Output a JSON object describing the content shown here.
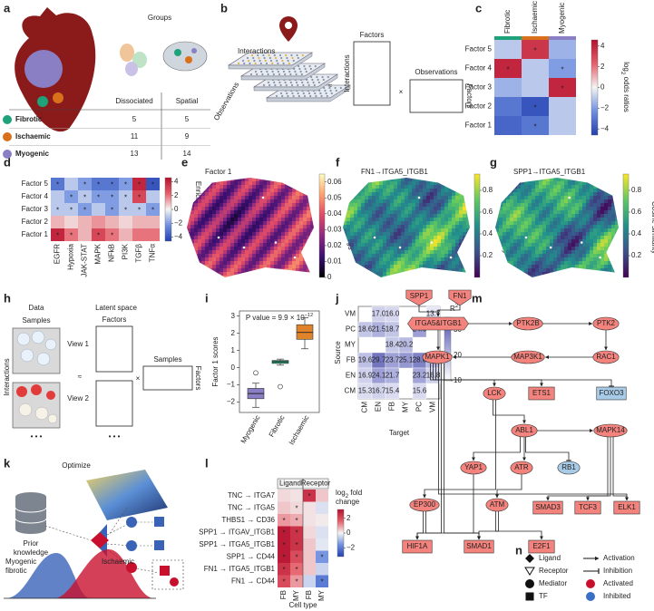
{
  "groups": {
    "label": "a",
    "title": "Groups",
    "headers": [
      "Dissociated",
      "Spatial"
    ],
    "rows": [
      {
        "name": "Fibrotic",
        "color": "#1ea27a",
        "values": [
          5,
          5
        ]
      },
      {
        "name": "Ischaemic",
        "color": "#d8701c",
        "values": [
          11,
          9
        ]
      },
      {
        "name": "Myogenic",
        "color": "#8a7fc4",
        "values": [
          13,
          14
        ]
      }
    ]
  },
  "factorization": {
    "label": "b",
    "plates_top": "Interactions",
    "plates_side": "Observations",
    "approx": "≈",
    "times": "×",
    "factor_matrix": {
      "top": "Factors",
      "side": "Interactions"
    },
    "obs_matrix": {
      "top": "Observations",
      "side": "Factors"
    }
  },
  "odds": {
    "label": "c",
    "columns": [
      "Fibrotic",
      "Ischaemic",
      "Myogenic"
    ],
    "column_colors": [
      "#1ea27a",
      "#d8701c",
      "#8a7fc4"
    ],
    "rows": [
      "Factor 5",
      "Factor 4",
      "Factor 3",
      "Factor 2",
      "Factor 1"
    ],
    "values": [
      [
        -1,
        3.5,
        -1.5
      ],
      [
        4,
        -1,
        -2
      ],
      [
        -1.5,
        -1,
        4
      ],
      [
        -3,
        -4,
        -1
      ],
      [
        -3.5,
        -3,
        -1
      ]
    ],
    "star": "*",
    "stars": [
      [
        0,
        1
      ],
      [
        1,
        0
      ],
      [
        1,
        2
      ],
      [
        2,
        2
      ],
      [
        3,
        1
      ],
      [
        4,
        1
      ]
    ],
    "lim": [
      -4.6,
      4.6
    ],
    "ticks": [
      {
        "value": -4,
        "label": "−4"
      },
      {
        "value": -2,
        "label": "−2"
      },
      0,
      2,
      4
    ],
    "cbar_title": {
      "base": "log",
      "sub": "2",
      "rest": " odds ratios"
    }
  },
  "enrichment": {
    "label": "d",
    "columns": [
      "EGFR",
      "Hypoxia",
      "JAK-STAT",
      "MAPK",
      "NFkB",
      "PI3K",
      "TGFβ",
      "TNFα"
    ],
    "rows": [
      "Factor 5",
      "Factor 4",
      "Factor 3",
      "Factor 2",
      "Factor 1"
    ],
    "values": [
      [
        -3,
        -1,
        -2,
        -3,
        -3,
        -2,
        4,
        -4
      ],
      [
        -1,
        -2,
        -1,
        -2,
        -2,
        -1,
        3,
        -1
      ],
      [
        -1,
        -1,
        -2,
        -1,
        -2,
        -1,
        -1,
        -2
      ],
      [
        1,
        0.5,
        1,
        1.5,
        1,
        0.5,
        1,
        1
      ],
      [
        4,
        2,
        1,
        3,
        2,
        1,
        2,
        2
      ]
    ],
    "star": "*",
    "stars": [
      [
        0,
        0
      ],
      [
        0,
        2
      ],
      [
        0,
        3
      ],
      [
        0,
        4
      ],
      [
        0,
        5
      ],
      [
        0,
        6
      ],
      [
        0,
        7
      ],
      [
        1,
        1
      ],
      [
        1,
        2
      ],
      [
        1,
        3
      ],
      [
        1,
        4
      ],
      [
        1,
        5
      ],
      [
        1,
        6
      ],
      [
        2,
        0
      ],
      [
        2,
        1
      ],
      [
        2,
        2
      ],
      [
        2,
        4
      ],
      [
        2,
        5
      ],
      [
        2,
        6
      ],
      [
        2,
        7
      ],
      [
        4,
        0
      ],
      [
        4,
        1
      ],
      [
        4,
        3
      ],
      [
        4,
        4
      ]
    ],
    "lim": [
      -4.6,
      4.6
    ],
    "ticks": [
      {
        "value": -4,
        "label": "−4"
      },
      {
        "value": -2,
        "label": "−2"
      },
      0,
      2,
      4
    ],
    "cbar_title": "Enrichment score"
  },
  "map_factor": {
    "label": "e",
    "title": "Factor 1",
    "lim": [
      0,
      0.065
    ],
    "ticks": [
      0,
      0.01,
      0.02,
      0.03,
      0.04,
      0.05,
      0.06
    ],
    "cbar_title": "NMF loadings"
  },
  "map_fn1": {
    "label": "f",
    "title": "FN1→ITGA5_ITGB1",
    "lim": [
      0,
      0.95
    ],
    "ticks": [
      0.2,
      0.4,
      0.6,
      0.8
    ],
    "cbar_title": "Cosine similarity"
  },
  "map_spp1": {
    "label": "g",
    "title": "SPP1→ITGA5_ITGB1",
    "lim": [
      0,
      0.95
    ],
    "ticks": [
      0.2,
      0.4,
      0.6,
      0.8
    ],
    "cbar_title": "Cosine similarity"
  },
  "multiview": {
    "label": "h",
    "data": "Data",
    "latent": "Latent space",
    "samples": "Samples",
    "factors": "Factors",
    "interactions": "Interactions",
    "view1": "View 1",
    "view2": "View 2",
    "approx": "≈",
    "times": "×",
    "dots": "• • •",
    "out_top": "Samples",
    "out_side": "Factors"
  },
  "scores": {
    "label": "i",
    "pvalue": {
      "text": "P value = 9.9 × 10",
      "exponent": "−12"
    },
    "ylabel": "Factor 1 scores",
    "categories": [
      "Myogenic",
      "Fibrotic",
      "Ischaemic"
    ],
    "colors": [
      "#8a7fc4",
      "#1ea27a",
      "#e0832a"
    ],
    "boxes": [
      [
        -2.3,
        -1.8,
        -1.5,
        -1.2,
        -0.9
      ],
      [
        0.15,
        0.25,
        0.35,
        0.42,
        0.5
      ],
      [
        1.1,
        1.65,
        2.05,
        2.5,
        2.9
      ]
    ],
    "outliers": [
      [
        -0.3
      ],
      [
        -1.1
      ],
      []
    ],
    "ylim": [
      -2.6,
      3.3
    ],
    "yticks": [
      {
        "value": -2,
        "label": "−2"
      },
      {
        "value": -1,
        "label": "−1"
      },
      0,
      1,
      2,
      3
    ]
  },
  "r2": {
    "label": "j",
    "rows": [
      "VM",
      "PC",
      "MY",
      "FB",
      "EN",
      "CM"
    ],
    "columns": [
      "CM",
      "EN",
      "FB",
      "MY",
      "PC",
      "VM"
    ],
    "values": [
      [
        null,
        17.0,
        16.0,
        null,
        null,
        13.7
      ],
      [
        18.6,
        21.5,
        18.7,
        null,
        24.0,
        null
      ],
      [
        null,
        null,
        18.4,
        20.2,
        null,
        null
      ],
      [
        19.6,
        29.7,
        23.7,
        25.1,
        28.0,
        20.8
      ],
      [
        16.9,
        24.1,
        21.7,
        null,
        23.2,
        16.8
      ],
      [
        15.3,
        16.7,
        15.4,
        null,
        15.6,
        null
      ]
    ],
    "value_labels": [
      [
        null,
        "17.0",
        "16.0",
        null,
        null,
        "13.7"
      ],
      [
        "18.6",
        "21.5",
        "18.7",
        null,
        "24.0",
        null
      ],
      [
        null,
        null,
        "18.4",
        "20.2",
        null,
        null
      ],
      [
        "19.6",
        "29.7",
        "23.7",
        "25.1",
        "28.0",
        "20.8"
      ],
      [
        "16.9",
        "24.1",
        "21.7",
        null,
        "23.2",
        "16.8"
      ],
      [
        "15.3",
        "16.7",
        "15.4",
        null,
        "15.6",
        null
      ]
    ],
    "lim": [
      10,
      35
    ],
    "ticks": [
      10,
      20,
      30
    ],
    "cbar_title": {
      "base": "R",
      "sup": "2"
    },
    "xlabel": "Target",
    "ylabel": "Source"
  },
  "optimization": {
    "label": "k",
    "optimize": "Optimize",
    "prior": [
      "Prior",
      "knowledge"
    ],
    "left_group": [
      "Myogenic",
      "fibrotic"
    ],
    "right_group": "Ischaemic"
  },
  "lr": {
    "label": "l",
    "rows": [
      "TNC → ITGA7",
      "TNC → ITGA5",
      "THBS1 → CD36",
      "SPP1 → ITGAV_ITGB1",
      "SPP1 → ITGA5_ITGB1",
      "SPP1 → CD44",
      "FN1 → ITGA5_ITGB1",
      "FN1 → CD44"
    ],
    "groups": [
      "Ligand",
      "Receptor"
    ],
    "columns": [
      "FB",
      "MY",
      "FB",
      "MY"
    ],
    "values": [
      [
        0.3,
        0.2,
        2.5,
        0.5
      ],
      [
        0.5,
        0.3,
        0.2,
        -0.3
      ],
      [
        1,
        0.8,
        0.2,
        0.1
      ],
      [
        3,
        2.5,
        0.3,
        -0.3
      ],
      [
        3,
        2.5,
        0.5,
        -0.2
      ],
      [
        3,
        2,
        0.5,
        -1.5
      ],
      [
        2.5,
        1.5,
        0.5,
        -0.5
      ],
      [
        2,
        1,
        -0.5,
        -2
      ]
    ],
    "star": "*",
    "stars": [
      [
        0,
        2
      ],
      [
        1,
        1
      ],
      [
        2,
        0
      ],
      [
        2,
        1
      ],
      [
        3,
        0
      ],
      [
        3,
        1
      ],
      [
        4,
        0
      ],
      [
        4,
        1
      ],
      [
        5,
        0
      ],
      [
        5,
        1
      ],
      [
        5,
        3
      ],
      [
        6,
        0
      ],
      [
        6,
        1
      ],
      [
        7,
        0
      ],
      [
        7,
        1
      ],
      [
        7,
        3
      ]
    ],
    "lim": [
      -3.2,
      3.2
    ],
    "ticks": [
      {
        "value": -2,
        "label": "−2"
      },
      0,
      2
    ],
    "xlabel": "Cell type",
    "cbar_title": {
      "base": "log",
      "sub": "2",
      "rest": " fold",
      "line2": "change"
    }
  },
  "network": {
    "label": "m",
    "colors": {
      "activated": "#f4837d",
      "inhibited": "#a8cbe8"
    },
    "nodes": [
      {
        "name": "SPP1",
        "shape": "ligand",
        "state": "activated"
      },
      {
        "name": "FN1",
        "shape": "ligand",
        "state": "activated"
      },
      {
        "name": "ITGA5&ITGB1",
        "shape": "receptor",
        "state": "activated"
      },
      {
        "name": "PTK2B",
        "shape": "mediator",
        "state": "activated"
      },
      {
        "name": "PTK2",
        "shape": "mediator",
        "state": "activated"
      },
      {
        "name": "RAC1",
        "shape": "mediator",
        "state": "activated"
      },
      {
        "name": "MAP3K1",
        "shape": "mediator",
        "state": "activated"
      },
      {
        "name": "MAPK1",
        "shape": "mediator",
        "state": "activated"
      },
      {
        "name": "LCK",
        "shape": "mediator",
        "state": "activated"
      },
      {
        "name": "ETS1",
        "shape": "tf",
        "state": "activated"
      },
      {
        "name": "FOXO3",
        "shape": "tf",
        "state": "inhibited"
      },
      {
        "name": "ABL1",
        "shape": "mediator",
        "state": "activated"
      },
      {
        "name": "MAPK14",
        "shape": "mediator",
        "state": "activated"
      },
      {
        "name": "YAP1",
        "shape": "mediator",
        "state": "activated"
      },
      {
        "name": "ATR",
        "shape": "mediator",
        "state": "activated"
      },
      {
        "name": "RB1",
        "shape": "mediator",
        "state": "inhibited"
      },
      {
        "name": "SMAD3",
        "shape": "tf",
        "state": "activated"
      },
      {
        "name": "TCF3",
        "shape": "tf",
        "state": "activated"
      },
      {
        "name": "ELK1",
        "shape": "tf",
        "state": "activated"
      },
      {
        "name": "EP300",
        "shape": "mediator",
        "state": "activated"
      },
      {
        "name": "ATM",
        "shape": "mediator",
        "state": "activated"
      },
      {
        "name": "HIF1A",
        "shape": "tf",
        "state": "activated"
      },
      {
        "name": "SMAD1",
        "shape": "tf",
        "state": "activated"
      },
      {
        "name": "E2F1",
        "shape": "tf",
        "state": "activated"
      }
    ],
    "edges": [
      {
        "from": 0,
        "to": 2
      },
      {
        "from": 1,
        "to": 2
      },
      {
        "from": 2,
        "to": 3
      },
      {
        "from": 3,
        "to": 4
      },
      {
        "from": 4,
        "to": 5
      },
      {
        "from": 5,
        "to": 6
      },
      {
        "from": 6,
        "to": 7
      },
      {
        "from": 2,
        "to": 7
      },
      {
        "from": 7,
        "to": 8
      },
      {
        "from": 7,
        "to": 9
      },
      {
        "from": 7,
        "to": 10,
        "inhibition": true
      },
      {
        "from": 7,
        "to": 18
      },
      {
        "from": 7,
        "to": 21
      },
      {
        "from": 7,
        "to": 22
      },
      {
        "from": 8,
        "to": 11
      },
      {
        "from": 8,
        "to": 19
      },
      {
        "from": 11,
        "to": 13
      },
      {
        "from": 11,
        "to": 14
      },
      {
        "from": 11,
        "to": 15,
        "inhibition": true
      },
      {
        "from": 11,
        "to": 12
      },
      {
        "from": 12,
        "to": 16
      },
      {
        "from": 12,
        "to": 17
      },
      {
        "from": 12,
        "to": 18
      },
      {
        "from": 13,
        "to": 22
      },
      {
        "from": 14,
        "to": 20
      },
      {
        "from": 20,
        "to": 23
      },
      {
        "from": 19,
        "to": 21
      },
      {
        "from": 19,
        "to": 22
      },
      {
        "from": 20,
        "to": 22
      }
    ]
  },
  "legend": {
    "label": "n",
    "shapes": [
      {
        "name": "Ligand",
        "shape": "diamond"
      },
      {
        "name": "Receptor",
        "shape": "triangle"
      },
      {
        "name": "Mediator",
        "shape": "circle"
      },
      {
        "name": "TF",
        "shape": "square"
      }
    ],
    "edges": [
      {
        "name": "Activation",
        "kind": "arrow"
      },
      {
        "name": "Inhibition",
        "kind": "bar"
      }
    ],
    "states": [
      {
        "name": "Activated",
        "color": "#c8102e"
      },
      {
        "name": "Inhibited",
        "color": "#3b6fc4"
      }
    ]
  }
}
